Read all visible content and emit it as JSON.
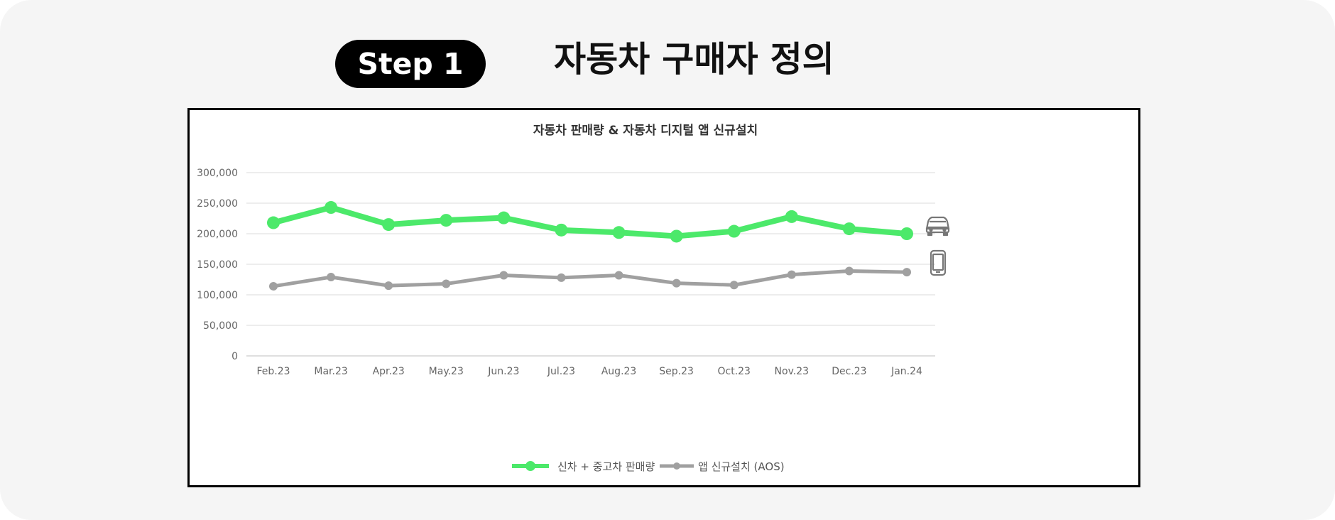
{
  "step": {
    "badge": "Step 1",
    "title": "자동차 구매자 정의"
  },
  "chart_data": {
    "type": "line",
    "title": "자동차 판매량 & 자동차 디지털 앱 신규설치",
    "xlabel": "",
    "ylabel": "",
    "categories": [
      "Feb.23",
      "Mar.23",
      "Apr.23",
      "May.23",
      "Jun.23",
      "Jul.23",
      "Aug.23",
      "Sep.23",
      "Oct.23",
      "Nov.23",
      "Dec.23",
      "Jan.24"
    ],
    "ylim": [
      0,
      300000
    ],
    "yticks": [
      0,
      50000,
      100000,
      150000,
      200000,
      250000,
      300000
    ],
    "ytick_labels": [
      "0",
      "50,000",
      "100,000",
      "150,000",
      "200,000",
      "250,000",
      "300,000"
    ],
    "grid": true,
    "legend": "bottom-center",
    "series": [
      {
        "name": "신차 + 중고차 판매량",
        "color": "#4ce96a",
        "icon": "car-icon",
        "values": [
          218000,
          243000,
          215000,
          222000,
          226000,
          206000,
          202000,
          196000,
          204000,
          228000,
          208000,
          200000
        ]
      },
      {
        "name": "앱 신규설치 (AOS)",
        "color": "#a0a0a0",
        "icon": "smartphone-icon",
        "values": [
          114000,
          129000,
          115000,
          118000,
          132000,
          128000,
          132000,
          119000,
          116000,
          133000,
          139000,
          137000
        ]
      }
    ]
  }
}
